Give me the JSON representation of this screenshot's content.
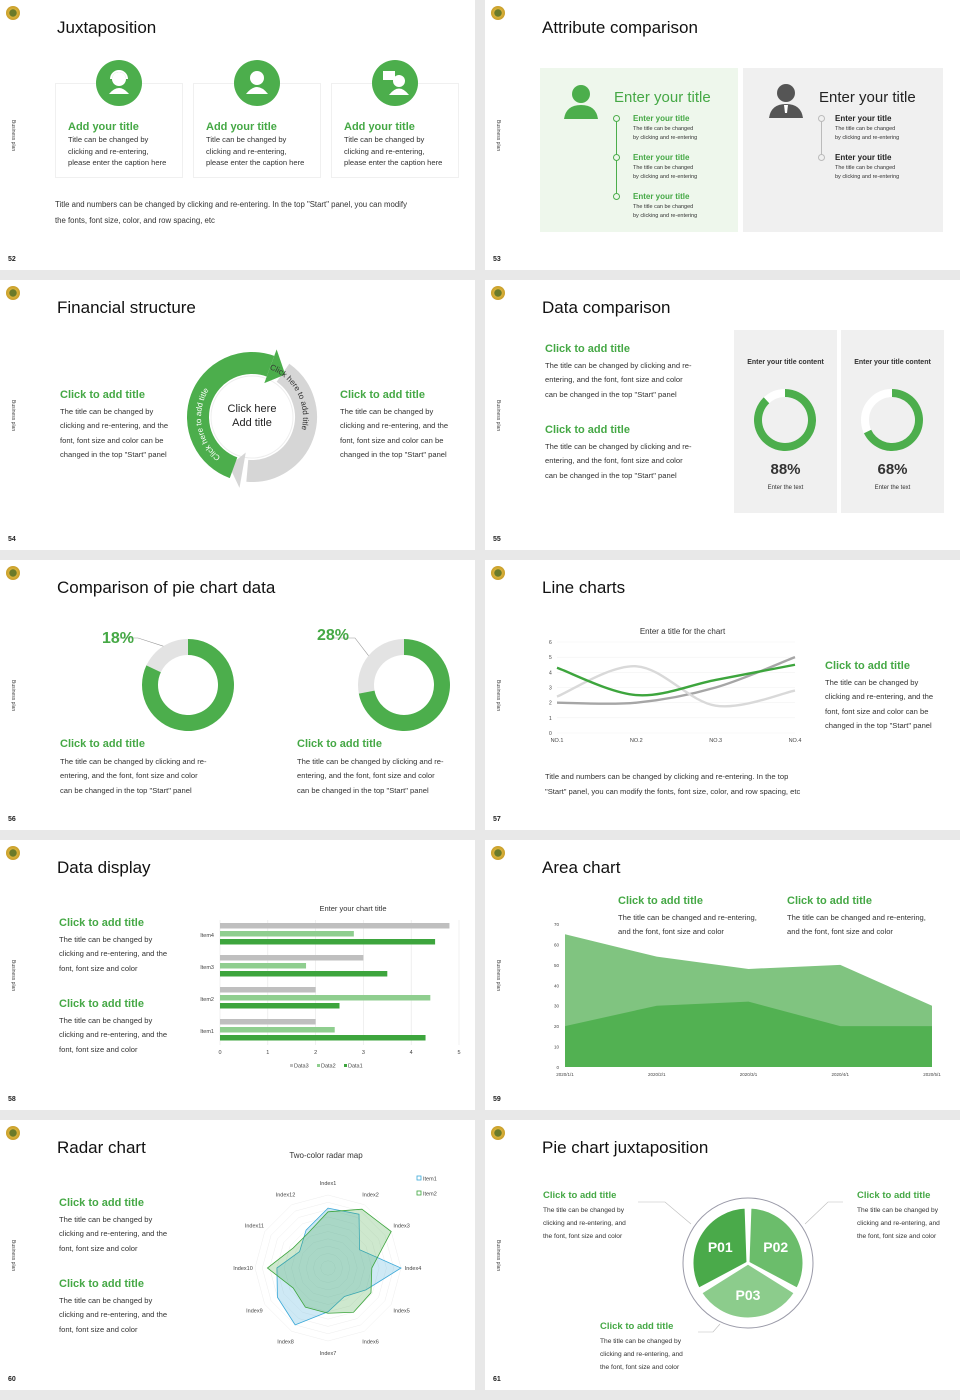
{
  "deck": {
    "side_label": "Business plan",
    "colors": {
      "green": "#45a845",
      "mid_green": "#6bbd6b",
      "light_green": "#8ccc8c",
      "panel_green": "#eef7ec",
      "panel_gray": "#f0f0f0",
      "ring_gray": "#d6d6d6"
    }
  },
  "s52": {
    "page": "52",
    "title": "Juxtaposition",
    "cards": [
      {
        "icon": "headset-agent-icon",
        "title": "Add your title",
        "text": "Title can be changed by\nclicking and re-entering,\nplease enter the caption here"
      },
      {
        "icon": "user-icon",
        "title": "Add your title",
        "text": "Title can be changed by\nclicking and re-entering,\nplease enter the caption here"
      },
      {
        "icon": "presenter-icon",
        "title": "Add your title",
        "text": "Title can be changed by\nclicking and re-entering,\nplease enter the caption here"
      }
    ],
    "footer": "Title and numbers can be changed by clicking and re-entering. In the top \"Start\" panel, you can modify\nthe fonts, font size, color, and row spacing, etc"
  },
  "s53": {
    "page": "53",
    "title": "Attribute comparison",
    "left": {
      "icon": "woman-user-icon",
      "heading": "Enter your title",
      "items": [
        {
          "title": "Enter your title",
          "text": "The title can be changed\nby clicking and re-entering"
        },
        {
          "title": "Enter your title",
          "text": "The title can be changed\nby clicking and re-entering"
        },
        {
          "title": "Enter your title",
          "text": "The title can be changed\nby clicking and re-entering"
        }
      ]
    },
    "right": {
      "icon": "businessman-icon",
      "heading": "Enter your title",
      "items": [
        {
          "title": "Enter your title",
          "text": "The title can be changed\nby clicking and re-entering"
        },
        {
          "title": "Enter your title",
          "text": "The title can be changed\nby clicking and re-entering"
        }
      ]
    }
  },
  "s54": {
    "page": "54",
    "title": "Financial structure",
    "left": {
      "title": "Click to add title",
      "text": "The title can be changed by\nclicking and re-entering, and the\nfont, font size and color can be\nchanged in the top \"Start\" panel"
    },
    "right": {
      "title": "Click to add title",
      "text": "The title can be changed by\nclicking and re-entering, and the\nfont, font size and color can be\nchanged in the top \"Start\" panel"
    },
    "center": "Click here\nAdd title",
    "arc_green": "Click here to add title",
    "arc_gray": "Click here to add title"
  },
  "s55": {
    "page": "55",
    "title": "Data comparison",
    "blocks": [
      {
        "title": "Click to add title",
        "text": "The title can be changed by clicking and re-\nentering, and the font, font size and color\ncan be changed in the top \"Start\" panel"
      },
      {
        "title": "Click to add title",
        "text": "The title can be changed by clicking and re-\nentering, and the font, font size and color\ncan be changed in the top \"Start\" panel"
      }
    ],
    "cards": [
      {
        "heading": "Enter your title content",
        "percent": 88,
        "value": "88%",
        "caption": "Enter the text"
      },
      {
        "heading": "Enter your title content",
        "percent": 68,
        "value": "68%",
        "caption": "Enter the text"
      }
    ]
  },
  "s56": {
    "page": "56",
    "title": "Comparison of pie chart data",
    "pies": [
      {
        "percent": 18,
        "value": "18%",
        "title": "Click to add title",
        "text": "The title can be changed by clicking and re-\nentering, and the font, font size and color\ncan be changed in the top \"Start\" panel"
      },
      {
        "percent": 28,
        "value": "28%",
        "title": "Click to add title",
        "text": "The title can be changed by clicking and re-\nentering, and the font, font size and color\ncan be changed in the top \"Start\" panel"
      }
    ]
  },
  "s57": {
    "page": "57",
    "title": "Line charts",
    "side": {
      "title": "Click to add title",
      "text": "The title can be changed by\nclicking and re-entering, and the\nfont, font size and color can be\nchanged in the top \"Start\" panel"
    },
    "footer": "Title and numbers can be changed by clicking and re-entering. In the top\n\"Start\" panel, you can modify the fonts, font size, color, and row spacing, etc"
  },
  "s58": {
    "page": "58",
    "title": "Data display",
    "blocks": [
      {
        "title": "Click to add title",
        "text": "The title can be changed by\nclicking and re-entering, and the\nfont, font size and color"
      },
      {
        "title": "Click to add title",
        "text": "The title can be changed by\nclicking and re-entering, and the\nfont, font size and color"
      }
    ]
  },
  "s59": {
    "page": "59",
    "title": "Area chart",
    "blocks": [
      {
        "title": "Click to add title",
        "text": "The title can be changed and re-entering,\nand the font, font size and color"
      },
      {
        "title": "Click to add title",
        "text": "The title can be changed and re-entering,\nand the font, font size and color"
      }
    ]
  },
  "s60": {
    "page": "60",
    "title": "Radar chart",
    "blocks": [
      {
        "title": "Click to add title",
        "text": "The title can be changed by\nclicking and re-entering, and the\nfont, font size and color"
      },
      {
        "title": "Click to add title",
        "text": "The title can be changed by\nclicking and re-entering, and the\nfont, font size and color"
      }
    ]
  },
  "s61": {
    "page": "61",
    "title": "Pie chart juxtaposition",
    "segments": [
      "P01",
      "P02",
      "P03"
    ],
    "blocks": [
      {
        "title": "Click to add title",
        "text": "The title can be changed by\nclicking and re-entering, and\nthe font, font size and color"
      },
      {
        "title": "Click to add title",
        "text": "The title can be changed by\nclicking and re-entering, and\nthe font, font size and color"
      },
      {
        "title": "Click to add title",
        "text": "The title can be changed by\nclicking and re-entering, and\nthe font, font size and color"
      }
    ]
  },
  "chart_data": [
    {
      "type": "line",
      "title": "Enter a title for the chart",
      "categories": [
        "NO.1",
        "NO.2",
        "NO.3",
        "NO.4"
      ],
      "ylim": [
        0,
        6
      ],
      "yticks": [
        "0",
        "1",
        "2",
        "3",
        "4",
        "5",
        "6"
      ],
      "smooth": true,
      "grid": true,
      "series": [
        {
          "color": "#3da53d",
          "values": [
            4.3,
            2.5,
            3.5,
            4.5
          ]
        },
        {
          "color": "#d9d9d9",
          "values": [
            2.4,
            4.4,
            1.8,
            2.8
          ]
        },
        {
          "color": "#a6a6a6",
          "values": [
            2.0,
            2.0,
            3.0,
            5.0
          ]
        }
      ]
    },
    {
      "type": "bar",
      "orientation": "horizontal",
      "title": "Enter your chart title",
      "categories": [
        "Item4",
        "Item3",
        "Item2",
        "Item1"
      ],
      "xlim": [
        0,
        5
      ],
      "xticks": [
        "0",
        "1",
        "2",
        "3",
        "4",
        "5"
      ],
      "legend": "bottom",
      "grid": true,
      "series": [
        {
          "name": "Data3",
          "color": "#bfbfbf",
          "values": [
            4.8,
            3.0,
            2.0,
            2.0
          ]
        },
        {
          "name": "Data2",
          "color": "#8fce8f",
          "values": [
            2.8,
            1.8,
            4.4,
            2.4
          ]
        },
        {
          "name": "Data1",
          "color": "#3da53d",
          "values": [
            4.5,
            3.5,
            2.5,
            4.3
          ]
        }
      ]
    },
    {
      "type": "area",
      "categories": [
        "2020/1/1",
        "2020/2/1",
        "2020/3/1",
        "2020/4/1",
        "2020/5/1"
      ],
      "ylim": [
        0,
        70
      ],
      "yticks": [
        "0",
        "10",
        "20",
        "30",
        "40",
        "50",
        "60",
        "70"
      ],
      "series": [
        {
          "color": "#80c480",
          "values": [
            65,
            54,
            48,
            50,
            30
          ]
        },
        {
          "color": "#52b152",
          "values": [
            20,
            30,
            32,
            20,
            20
          ]
        }
      ]
    },
    {
      "type": "radar",
      "title": "Two-color radar map",
      "categories": [
        "Index1",
        "Index2",
        "Index3",
        "Index4",
        "Index5",
        "Index6",
        "Index7",
        "Index8",
        "Index9",
        "Index10",
        "Index11",
        "Index12"
      ],
      "rlim": [
        0,
        10
      ],
      "legend": "top-right",
      "series": [
        {
          "name": "Item1",
          "color": "#3aa8d8",
          "values": [
            8.2,
            8.5,
            5,
            10,
            6,
            4.5,
            6,
            9,
            8,
            7,
            4.5,
            6
          ]
        },
        {
          "name": "Item2",
          "color": "#3da53d",
          "values": [
            7.7,
            9.3,
            10,
            6,
            6.8,
            7,
            6.2,
            6.2,
            5.5,
            8.3,
            5.5,
            5.5
          ]
        }
      ]
    }
  ]
}
